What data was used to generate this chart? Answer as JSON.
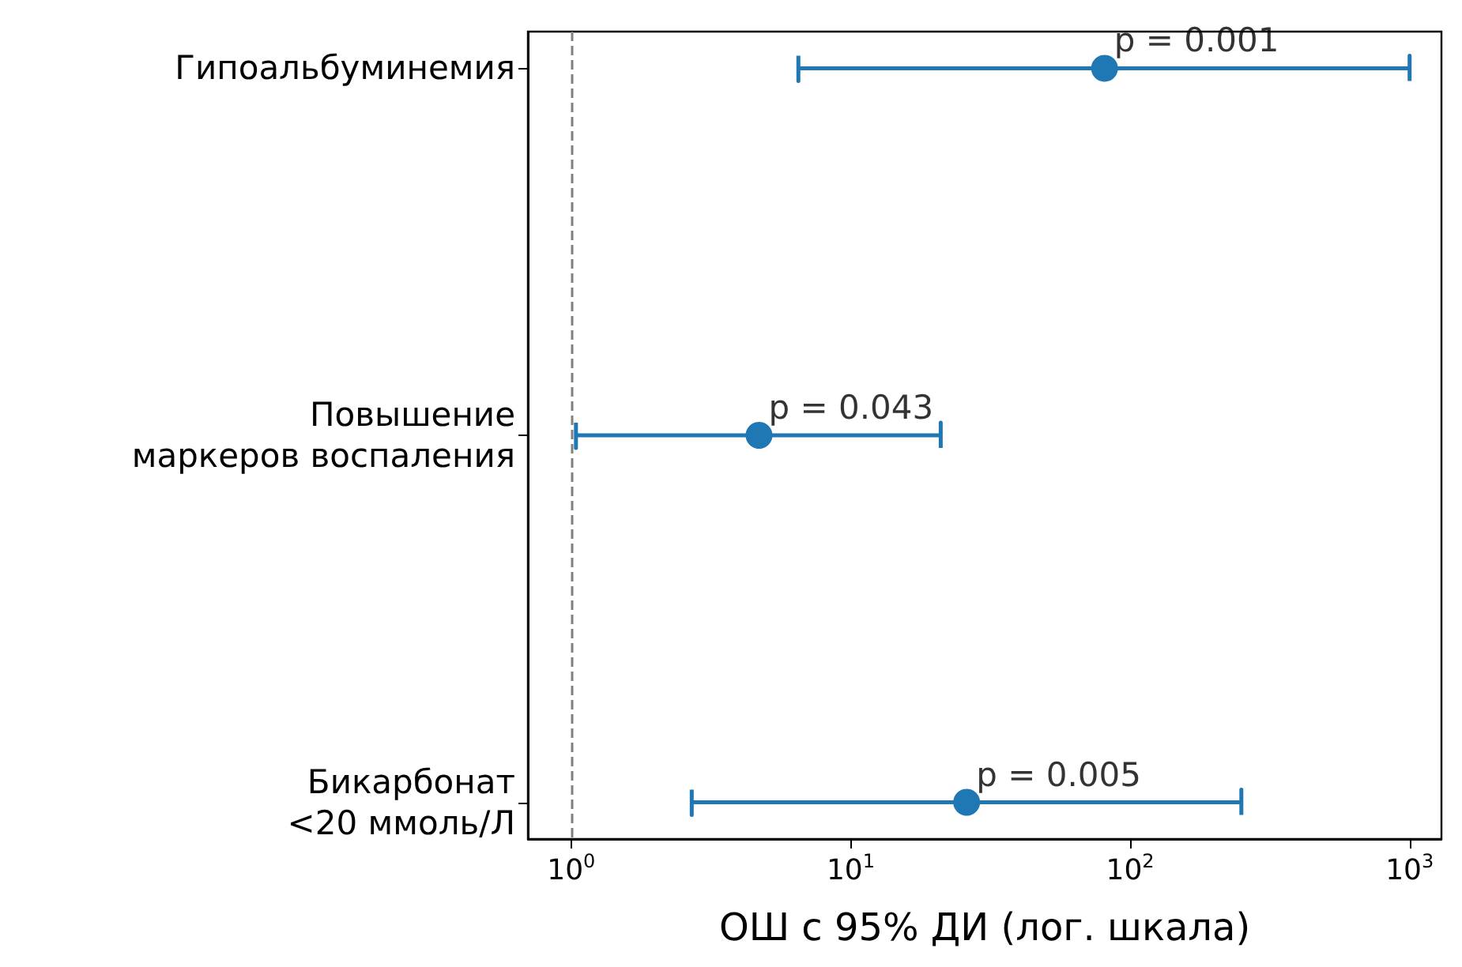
{
  "chart_data": {
    "type": "scatter",
    "orientation": "horizontal",
    "xlabel": "ОШ с 95% ДИ (лог. шкала)",
    "categories": [
      "Гипоальбуминемия",
      "Повышение\nмаркеров воспаления",
      "Бикарбонат\n<20 ммоль/Л"
    ],
    "values": [
      81,
      4.7,
      26
    ],
    "errors": [
      [
        6.5,
        1000
      ],
      [
        1.04,
        21
      ],
      [
        2.7,
        250
      ]
    ],
    "color": "#1f77b4",
    "marker": "circle",
    "log": "x",
    "grid": false,
    "xlim": [
      0.7,
      1300
    ],
    "xticks": [
      {
        "value": 1,
        "label": "10$^{0}$"
      },
      {
        "value": 10,
        "label": "10$^{1}$"
      },
      {
        "value": 100,
        "label": "10$^{2}$"
      },
      {
        "value": 1000,
        "label": "10$^{3}$"
      }
    ],
    "ref_lines": [
      {
        "axis": "x",
        "value": 1,
        "color": "#808080",
        "line_style": "dashed"
      }
    ],
    "annotations": [
      {
        "text": "p = 0.001",
        "x": 81,
        "y": "Гипоальбуминемия"
      },
      {
        "text": "p = 0.043",
        "x": 4.7,
        "y": "Повышение\nмаркеров воспаления"
      },
      {
        "text": "p = 0.005",
        "x": 26,
        "y": "Бикарбонат\n<20 ммоль/Л"
      }
    ]
  }
}
